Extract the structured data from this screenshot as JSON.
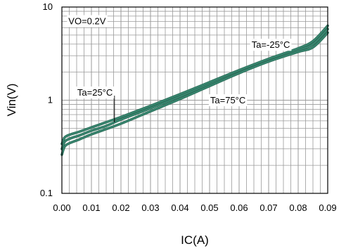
{
  "chart_data": {
    "type": "line",
    "title": "",
    "xlabel": "IC(A)",
    "ylabel": "Vin(V)",
    "x_scale": "linear",
    "y_scale": "log",
    "xlim": [
      0,
      0.09
    ],
    "ylim": [
      0.1,
      10
    ],
    "x_ticks": [
      "0.00",
      "0.01",
      "0.02",
      "0.03",
      "0.04",
      "0.05",
      "0.06",
      "0.07",
      "0.08",
      "0.09"
    ],
    "y_ticks": [
      "0.1",
      "1",
      "10"
    ],
    "grid": true,
    "line_color": "#3a8a73",
    "series": [
      {
        "name": "Ta=25°C",
        "x": [
          0.0,
          0.001,
          0.003,
          0.006,
          0.01,
          0.015,
          0.02,
          0.03,
          0.04,
          0.05,
          0.06,
          0.07,
          0.08,
          0.085,
          0.09
        ],
        "y": [
          0.3,
          0.36,
          0.39,
          0.42,
          0.47,
          0.53,
          0.62,
          0.82,
          1.1,
          1.5,
          2.05,
          2.7,
          3.45,
          4.0,
          5.8
        ]
      },
      {
        "name": "Ta=-25°C",
        "x": [
          0.0,
          0.001,
          0.003,
          0.006,
          0.01,
          0.015,
          0.02,
          0.03,
          0.04,
          0.05,
          0.06,
          0.07,
          0.08,
          0.085,
          0.09
        ],
        "y": [
          0.34,
          0.4,
          0.43,
          0.46,
          0.51,
          0.58,
          0.66,
          0.87,
          1.16,
          1.56,
          2.1,
          2.78,
          3.6,
          4.3,
          6.3
        ]
      },
      {
        "name": "Ta=75°C",
        "x": [
          0.0,
          0.001,
          0.003,
          0.006,
          0.01,
          0.015,
          0.02,
          0.03,
          0.04,
          0.05,
          0.06,
          0.07,
          0.08,
          0.085,
          0.09
        ],
        "y": [
          0.26,
          0.32,
          0.35,
          0.38,
          0.43,
          0.49,
          0.56,
          0.76,
          1.03,
          1.42,
          1.95,
          2.6,
          3.3,
          3.7,
          5.3
        ]
      }
    ],
    "annotations": [
      {
        "text": "VO=0.2V",
        "x": 0.0015,
        "y": 7.0,
        "has_box": true
      },
      {
        "text": "Ta=-25°C",
        "x": 0.0635,
        "y": 3.9,
        "has_box": true,
        "leader_to": null
      },
      {
        "text": "Ta=25°C",
        "x": 0.0045,
        "y": 1.2,
        "has_box": true,
        "leader_to": [
          0.0178,
          0.58
        ]
      },
      {
        "text": "Ta=75°C",
        "x": 0.0495,
        "y": 0.99,
        "has_box": true,
        "leader_to": null
      }
    ]
  }
}
